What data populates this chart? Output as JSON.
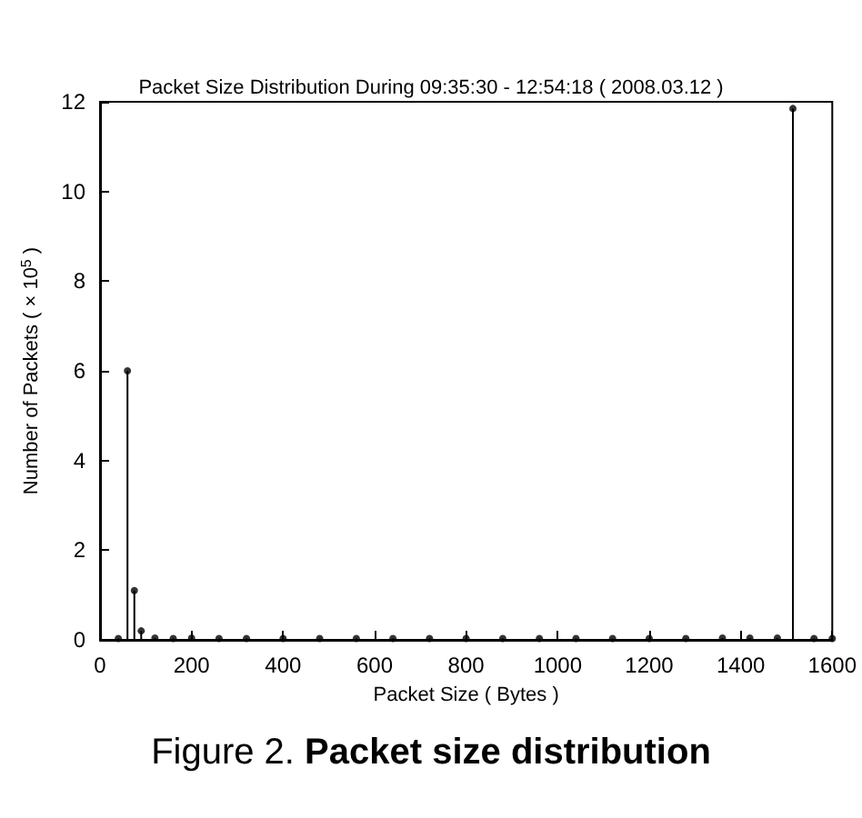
{
  "chart_data": {
    "type": "lollipop",
    "title": "Packet Size Distribution During 09:35:30 - 12:54:18 ( 2008.03.12 )",
    "xlabel": "Packet Size ( Bytes )",
    "ylabel": "Number of Packets ( × 10$^{5}$ )",
    "x": [
      40,
      60,
      75,
      90,
      120,
      160,
      200,
      260,
      320,
      400,
      480,
      560,
      640,
      720,
      800,
      880,
      960,
      1040,
      1120,
      1200,
      1280,
      1360,
      1420,
      1480,
      1514,
      1560,
      1600
    ],
    "values": [
      0.03,
      6.0,
      1.1,
      0.2,
      0.04,
      0.03,
      0.04,
      0.03,
      0.03,
      0.03,
      0.03,
      0.03,
      0.03,
      0.03,
      0.03,
      0.03,
      0.03,
      0.03,
      0.03,
      0.03,
      0.03,
      0.04,
      0.04,
      0.04,
      11.85,
      0.03,
      0.03
    ],
    "color": "#000000",
    "marker": "circle",
    "xlim": [
      0,
      1600
    ],
    "xticks": [
      0,
      200,
      400,
      600,
      800,
      1000,
      1200,
      1400,
      1600
    ],
    "ylim": [
      0,
      12
    ],
    "yticks": [
      0,
      2,
      4,
      6,
      8,
      10,
      12
    ],
    "grid": false,
    "annotations": [
      "Figure 2. Packet size distribution"
    ]
  }
}
